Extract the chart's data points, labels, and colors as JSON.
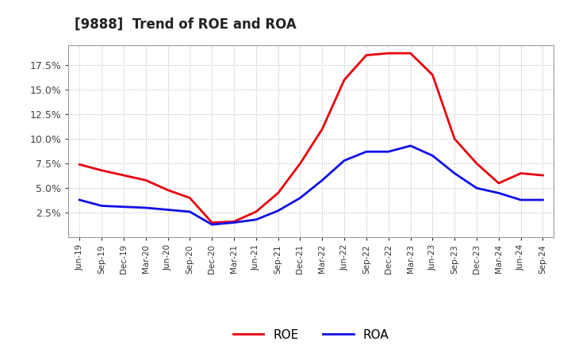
{
  "title": "[9888]  Trend of ROE and ROA",
  "x_labels": [
    "Jun-19",
    "Sep-19",
    "Dec-19",
    "Mar-20",
    "Jun-20",
    "Sep-20",
    "Dec-20",
    "Mar-21",
    "Jun-21",
    "Sep-21",
    "Dec-21",
    "Mar-22",
    "Jun-22",
    "Sep-22",
    "Dec-22",
    "Mar-23",
    "Jun-23",
    "Sep-23",
    "Dec-23",
    "Mar-24",
    "Jun-24",
    "Sep-24"
  ],
  "roe": [
    7.4,
    6.8,
    6.3,
    5.8,
    4.8,
    4.0,
    1.5,
    1.6,
    2.6,
    4.5,
    7.5,
    11.0,
    16.0,
    18.5,
    18.7,
    18.7,
    16.5,
    10.0,
    7.5,
    5.5,
    6.5,
    6.3
  ],
  "roa": [
    3.8,
    3.2,
    3.1,
    3.0,
    2.8,
    2.6,
    1.3,
    1.5,
    1.8,
    2.7,
    4.0,
    5.8,
    7.8,
    8.7,
    8.7,
    9.3,
    8.3,
    6.5,
    5.0,
    4.5,
    3.8,
    3.8
  ],
  "roe_color": "#e8000d",
  "roa_color": "#1010e8",
  "background_color": "#ffffff",
  "grid_color": "#aaaaaa",
  "ylim": [
    0.0,
    19.5
  ],
  "yticks": [
    2.5,
    5.0,
    7.5,
    10.0,
    12.5,
    15.0,
    17.5
  ],
  "legend_roe": "ROE",
  "legend_roa": "ROA"
}
